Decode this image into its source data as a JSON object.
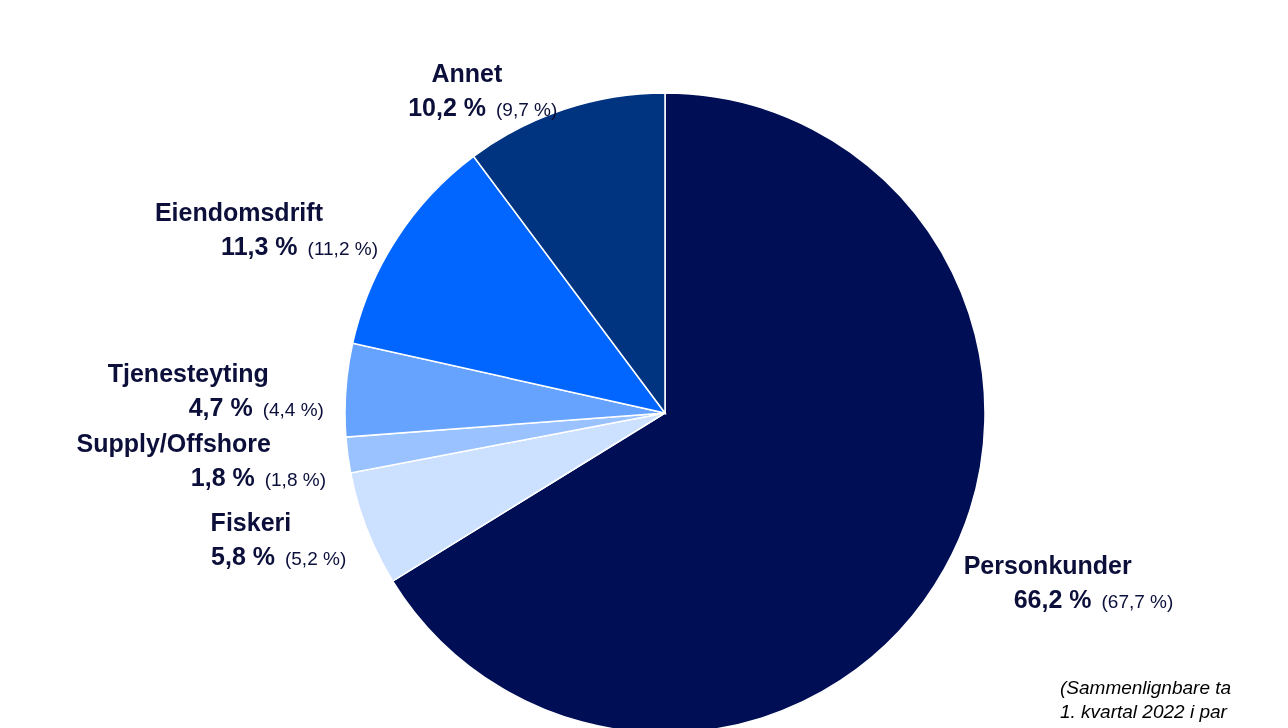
{
  "chart_data": {
    "type": "pie",
    "categories": [
      "Personkunder",
      "Fiskeri",
      "Supply/Offshore",
      "Tjenesteyting",
      "Eiendomsdrift",
      "Annet"
    ],
    "values": [
      66.2,
      5.8,
      1.8,
      4.7,
      11.3,
      10.2
    ],
    "value_labels": [
      "66,2 %",
      "5,8 %",
      "1,8 %",
      "4,7 %",
      "11,3 %",
      "10,2 %"
    ],
    "colors": [
      "#000f55",
      "#cce0ff",
      "#99c2ff",
      "#66a3ff",
      "#0066ff",
      "#003380"
    ],
    "annotations": [
      {
        "text": "(67,7 %)",
        "x": "Personkunder"
      },
      {
        "text": "(5,2 %)",
        "x": "Fiskeri"
      },
      {
        "text": "(1,8 %)",
        "x": "Supply/Offshore"
      },
      {
        "text": "(4,4 %)",
        "x": "Tjenesteyting"
      },
      {
        "text": "(11,2 %)",
        "x": "Eiendomsdrift"
      },
      {
        "text": "(9,7 %)",
        "x": "Annet"
      },
      "(Sammenlignbare ta",
      "1. kvartal 2022 i par"
    ]
  }
}
